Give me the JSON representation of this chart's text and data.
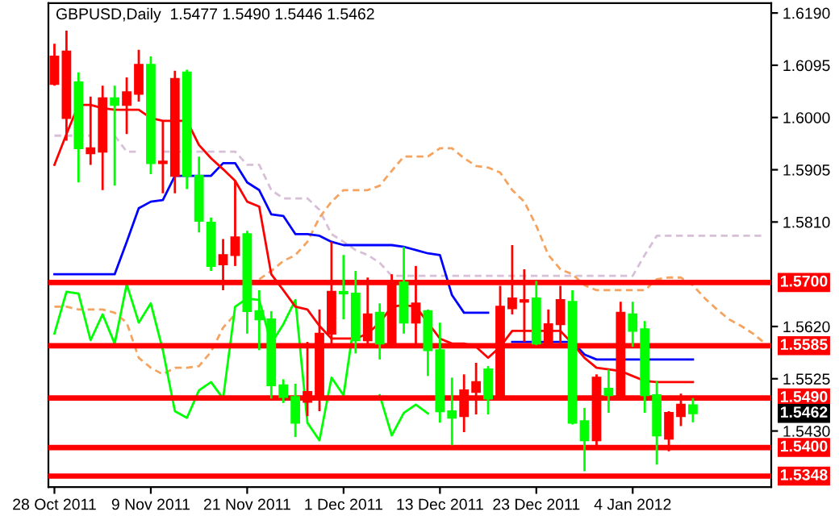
{
  "chart_data": {
    "type": "candlestick",
    "title": "GBPUSD,Daily  1.5477 1.5490 1.5446 1.5462",
    "categories": [
      "28 Oct 2011",
      null,
      null,
      null,
      null,
      null,
      null,
      null,
      "9 Nov 2011",
      null,
      null,
      null,
      null,
      null,
      null,
      null,
      "21 Nov 2011",
      null,
      null,
      null,
      null,
      null,
      null,
      null,
      "1 Dec 2011",
      null,
      null,
      null,
      null,
      null,
      null,
      null,
      "13 Dec 2011",
      null,
      null,
      null,
      null,
      null,
      null,
      null,
      "23 Dec 2011",
      null,
      null,
      null,
      null,
      null,
      null,
      null,
      "4 Jan 2012",
      null,
      null,
      null,
      null,
      null,
      null,
      null,
      null,
      null,
      null,
      null
    ],
    "ohlc": [
      [
        1.6061,
        1.6134,
        1.6058,
        1.6111
      ],
      [
        1.5999,
        1.6158,
        1.5958,
        1.612
      ],
      [
        1.6064,
        1.6082,
        1.5882,
        1.5944
      ],
      [
        1.5935,
        1.6038,
        1.5914,
        1.5944
      ],
      [
        1.5938,
        1.6058,
        1.5868,
        1.6035
      ],
      [
        1.6035,
        1.6058,
        1.5876,
        1.6023
      ],
      [
        1.6023,
        1.6073,
        1.597,
        1.6046
      ],
      [
        1.6043,
        1.6123,
        1.6029,
        1.6096
      ],
      [
        1.6096,
        1.6111,
        1.5897,
        1.5917
      ],
      [
        1.5917,
        1.5994,
        1.5862,
        1.592
      ],
      [
        1.5894,
        1.6085,
        1.5862,
        1.607
      ],
      [
        1.6082,
        1.6087,
        1.587,
        1.5894
      ],
      [
        1.5894,
        1.5929,
        1.5791,
        1.5812
      ],
      [
        1.5809,
        1.5818,
        1.5721,
        1.573
      ],
      [
        1.5733,
        1.5779,
        1.5686,
        1.575
      ],
      [
        1.575,
        1.5885,
        1.573,
        1.5782
      ],
      [
        1.5788,
        1.5794,
        1.5607,
        1.5648
      ],
      [
        1.5648,
        1.5686,
        1.5577,
        1.5633
      ],
      [
        1.5633,
        1.5648,
        1.5489,
        1.5513
      ],
      [
        1.5513,
        1.5524,
        1.5481,
        1.5492
      ],
      [
        1.5492,
        1.5516,
        1.5419,
        1.5445
      ],
      [
        1.5483,
        1.5592,
        1.5457,
        1.5501
      ],
      [
        1.5495,
        1.5651,
        1.5466,
        1.5607
      ],
      [
        1.5607,
        1.5774,
        1.5583,
        1.5683
      ],
      [
        1.5683,
        1.575,
        1.5633,
        1.568
      ],
      [
        1.568,
        1.5721,
        1.5571,
        1.5595
      ],
      [
        1.5595,
        1.5709,
        1.5583,
        1.5642
      ],
      [
        1.5645,
        1.5662,
        1.556,
        1.5589
      ],
      [
        1.5589,
        1.5715,
        1.5583,
        1.5697
      ],
      [
        1.57,
        1.5765,
        1.5607,
        1.5627
      ],
      [
        1.5627,
        1.573,
        1.5583,
        1.5662
      ],
      [
        1.5648,
        1.5651,
        1.553,
        1.5577
      ],
      [
        1.5577,
        1.5627,
        1.5445,
        1.5466
      ],
      [
        1.5466,
        1.5527,
        1.5404,
        1.5454
      ],
      [
        1.5457,
        1.5533,
        1.5428,
        1.5504
      ],
      [
        1.5501,
        1.5554,
        1.546,
        1.5519
      ],
      [
        1.5542,
        1.5548,
        1.546,
        1.5489
      ],
      [
        1.5489,
        1.5694,
        1.5486,
        1.5656
      ],
      [
        1.5653,
        1.5768,
        1.5642,
        1.5671
      ],
      [
        1.5665,
        1.5724,
        1.5592,
        1.5668
      ],
      [
        1.5671,
        1.5703,
        1.5586,
        1.5589
      ],
      [
        1.5589,
        1.5651,
        1.5586,
        1.5624
      ],
      [
        1.5624,
        1.5694,
        1.5589,
        1.5668
      ],
      [
        1.5665,
        1.5686,
        1.5442,
        1.5445
      ],
      [
        1.5448,
        1.5472,
        1.5357,
        1.5413
      ],
      [
        1.5413,
        1.5533,
        1.5402,
        1.5527
      ],
      [
        1.5507,
        1.5542,
        1.5463,
        1.5495
      ],
      [
        1.5495,
        1.5665,
        1.5492,
        1.5645
      ],
      [
        1.5642,
        1.5665,
        1.5583,
        1.5612
      ],
      [
        1.5615,
        1.563,
        1.5463,
        1.5495
      ],
      [
        1.5495,
        1.5521,
        1.5369,
        1.5422
      ],
      [
        1.5416,
        1.5466,
        1.5393,
        1.5463
      ],
      [
        1.5457,
        1.5498,
        1.5439,
        1.5478
      ],
      [
        1.5477,
        1.549,
        1.5446,
        1.5462
      ],
      null,
      null,
      null,
      null,
      null,
      null
    ],
    "colors": [
      "#ff0000",
      "#ff0000",
      "#00ff00",
      "#ff0000",
      "#ff0000",
      "#00ff00",
      "#ff0000",
      "#ff0000",
      "#00ff00",
      "#ff0000",
      "#ff0000",
      "#00ff00",
      "#00ff00",
      "#00ff00",
      "#ff0000",
      "#ff0000",
      "#00ff00",
      "#00ff00",
      "#00ff00",
      "#00ff00",
      "#00ff00",
      "#ff0000",
      "#ff0000",
      "#ff0000",
      "#00ff00",
      "#00ff00",
      "#ff0000",
      "#00ff00",
      "#ff0000",
      "#00ff00",
      "#ff0000",
      "#00ff00",
      "#00ff00",
      "#00ff00",
      "#ff0000",
      "#ff0000",
      "#00ff00",
      "#ff0000",
      "#ff0000",
      "#ff0000",
      "#00ff00",
      "#ff0000",
      "#ff0000",
      "#00ff00",
      "#00ff00",
      "#ff0000",
      "#00ff00",
      "#ff0000",
      "#00ff00",
      "#00ff00",
      "#00ff00",
      "#ff0000",
      "#ff0000",
      "#00ff00",
      null,
      null,
      null,
      null,
      null,
      null
    ],
    "series": [
      {
        "type": "line",
        "color": "#d8bfd8",
        "line_style": "dashed",
        "values": [
          1.5967,
          1.5967,
          1.5967,
          1.5967,
          null,
          1.5967,
          1.5938,
          1.5938,
          null,
          1.5938,
          1.5938,
          1.5938,
          1.5938,
          1.5938,
          1.5938,
          1.5938,
          1.5914,
          1.5914,
          1.5868,
          1.5853,
          1.5853,
          1.5853,
          1.5832,
          1.5788,
          1.5774,
          1.5759,
          1.575,
          1.5736,
          1.5712,
          1.5712,
          1.5712,
          1.5712,
          1.5712,
          1.5712,
          1.5712,
          1.5712,
          1.5712,
          1.5712,
          1.5712,
          1.5712,
          1.5712,
          1.5712,
          1.5712,
          1.5712,
          1.5712,
          1.5712,
          1.5712,
          1.5712,
          1.5712,
          1.575,
          1.5785,
          1.5785,
          1.5785,
          1.5785,
          1.5785,
          1.5785,
          1.5785,
          1.5785,
          1.5785,
          1.5785
        ]
      },
      {
        "type": "line",
        "color": "#f4a460",
        "line_style": "dashed",
        "values": [
          1.5656,
          1.5656,
          1.5651,
          1.5651,
          1.5651,
          1.5645,
          1.5627,
          1.5563,
          1.5545,
          1.5533,
          1.5545,
          1.5545,
          1.5548,
          1.5574,
          1.5618,
          1.5642,
          null,
          1.5706,
          1.5721,
          1.5739,
          1.575,
          1.5774,
          1.5818,
          1.5847,
          1.5868,
          1.5868,
          1.5868,
          1.5876,
          1.5903,
          1.5929,
          1.5929,
          1.5929,
          1.5944,
          1.5944,
          1.5926,
          1.5912,
          1.5909,
          1.59,
          1.5868,
          1.5847,
          1.5803,
          1.575,
          1.5724,
          1.5715,
          1.5695,
          1.5686,
          1.5686,
          1.5686,
          1.5686,
          1.5686,
          1.5706,
          1.5709,
          1.5709,
          1.5695,
          1.5671,
          1.5651,
          1.5633,
          1.5621,
          1.5607,
          1.5589
        ]
      },
      {
        "type": "line",
        "color": "#00ff00",
        "values": [
          1.5607,
          1.5683,
          1.568,
          1.5595,
          1.5642,
          1.5589,
          1.5697,
          1.5627,
          1.5662,
          1.5577,
          1.5466,
          1.5454,
          1.5504,
          1.5519,
          1.5489,
          1.5656,
          1.5671,
          1.5668,
          1.5589,
          1.5624,
          1.5668,
          1.5445,
          1.5413,
          1.5527,
          1.5495,
          1.5645,
          null,
          1.5495,
          1.5422,
          1.5463,
          1.5478,
          1.5462,
          null,
          null,
          null,
          null,
          null,
          null,
          null,
          null,
          null,
          null,
          null,
          null,
          null,
          null,
          null,
          null,
          null,
          null,
          null,
          null,
          null,
          null,
          null,
          null,
          null,
          null,
          null,
          null
        ]
      },
      {
        "type": "line",
        "color": "#0000ff",
        "values": [
          1.5715,
          1.5715,
          1.5715,
          1.5715,
          1.5715,
          1.5715,
          1.5774,
          1.5835,
          1.5847,
          1.585,
          1.5894,
          1.5894,
          1.5894,
          1.5894,
          1.5917,
          1.5917,
          1.5882,
          1.5868,
          1.5824,
          1.5821,
          1.5788,
          1.5788,
          1.5785,
          1.5774,
          1.5768,
          1.5768,
          1.5768,
          1.5768,
          1.5768,
          1.5765,
          1.5759,
          1.5753,
          1.575,
          1.5677,
          1.5645,
          1.5645,
          1.5645,
          null,
          1.5592,
          1.5592,
          1.5592,
          1.5592,
          1.5592,
          1.5592,
          1.5569,
          1.556,
          1.556,
          1.556,
          1.556,
          1.556,
          1.556,
          1.556,
          1.556,
          1.556,
          null,
          null,
          null,
          null,
          null,
          null
        ]
      },
      {
        "type": "line",
        "color": "#ff0000",
        "values": [
          1.5914,
          1.597,
          1.6023,
          1.6023,
          1.6017,
          1.6014,
          1.6014,
          1.6014,
          1.5999,
          1.5994,
          1.5994,
          1.5994,
          1.595,
          1.5926,
          1.5906,
          1.5885,
          1.5847,
          1.5838,
          1.5715,
          1.5686,
          1.5656,
          1.5651,
          1.5621,
          1.5598,
          1.5598,
          1.5598,
          1.5607,
          1.5627,
          1.5656,
          1.5659,
          1.5656,
          1.5627,
          1.5598,
          1.5589,
          1.5589,
          1.5583,
          1.5563,
          1.5583,
          1.5612,
          1.5612,
          1.5612,
          1.5612,
          1.5612,
          1.5589,
          1.5563,
          1.5545,
          1.5542,
          1.5539,
          1.553,
          1.5521,
          1.5519,
          1.5519,
          1.5519,
          1.5519,
          null,
          null,
          null,
          null,
          null,
          null
        ]
      }
    ],
    "ylim": [
      1.5328,
      1.6208
    ],
    "yticks": [
      {
        "value": 1.619,
        "label": "1.6190"
      },
      1.6095,
      {
        "value": 1.6,
        "label": "1.6000"
      },
      1.5905,
      {
        "value": 1.581,
        "label": "1.5810"
      },
      {
        "value": 1.562,
        "label": "1.5620"
      },
      1.5525,
      {
        "value": 1.543,
        "label": "1.5430"
      }
    ],
    "ref_lines": [
      {
        "axis": "y",
        "value": 1.57,
        "label": "1.5700",
        "color": "#ff0000"
      },
      {
        "axis": "y",
        "value": 1.5585,
        "label": "1.5585",
        "color": "#ff0000"
      },
      {
        "axis": "y",
        "value": 1.549,
        "label": "1.5490",
        "color": "#ff0000"
      },
      {
        "axis": "y",
        "value": 1.54,
        "label": "1.5400",
        "color": "#ff0000"
      },
      {
        "axis": "y",
        "value": 1.5348,
        "label": "1.5348",
        "color": "#ff0000"
      }
    ],
    "annotations": [
      "1.5462"
    ]
  }
}
